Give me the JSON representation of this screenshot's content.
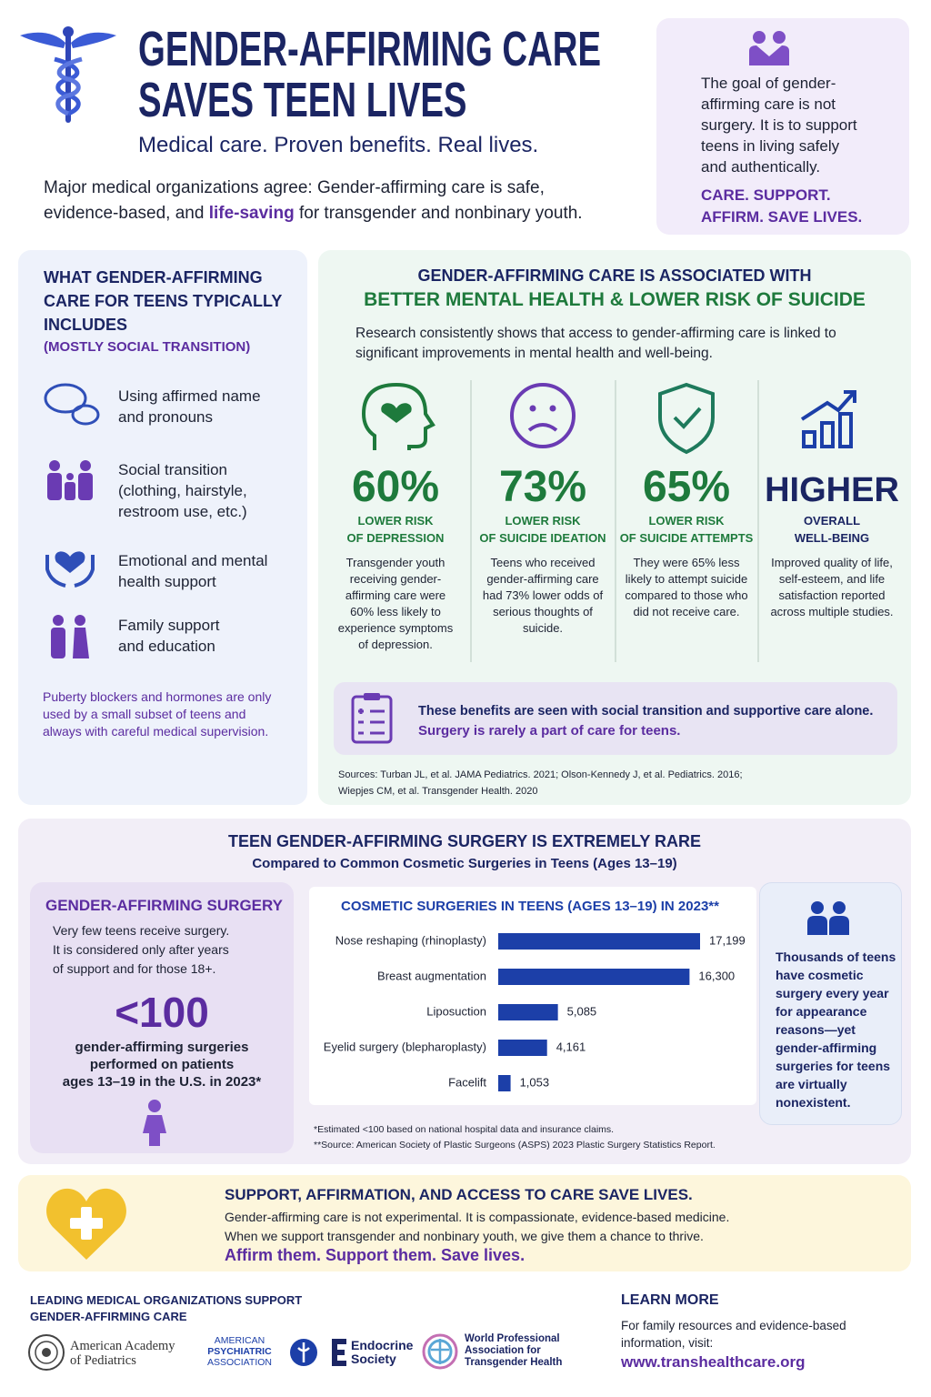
{
  "header": {
    "title_line1": "GENDER-AFFIRMING CARE",
    "title_line2": "SAVES TEEN LIVES",
    "tagline": "Medical care. Proven benefits. Real lives.",
    "intro": [
      "Major medical organizations agree: Gender-affirming care is safe, evidence-based, and",
      "life-saving",
      "for transgender and nonbinary youth."
    ]
  },
  "goal_box": {
    "text": "The goal of gender-affirming care is not surgery. It is to support teens in living safely and authentically.",
    "slogan_line1": "CARE. SUPPORT.",
    "slogan_line2": "AFFIRM. SAVE LIVES."
  },
  "includes": {
    "title": "WHAT GENDER-AFFIRMING CARE FOR TEENS TYPICALLY INCLUDES",
    "subtitle": "(MOSTLY SOCIAL TRANSITION)",
    "items": [
      [
        "Using affirmed name",
        "and pronouns"
      ],
      [
        "Social transition",
        "(clothing, hairstyle,",
        "restroom use, etc.)"
      ],
      [
        "Emotional and mental",
        "health support"
      ],
      [
        "Family support",
        "and education"
      ]
    ],
    "note": "Puberty blockers and hormones are only used by a small subset of teens and always with careful medical supervision."
  },
  "outcomes": {
    "title_line1": "GENDER-AFFIRMING CARE IS ASSOCIATED WITH",
    "title_line2": "BETTER MENTAL HEALTH & LOWER RISK OF SUICIDE",
    "intro": "Research consistently shows that access to gender-affirming care is linked to significant improvements in mental health and well-being.",
    "stats": [
      {
        "value": "60%",
        "label": [
          "LOWER RISK",
          "OF DEPRESSION"
        ],
        "text": "Transgender youth receiving gender-affirming care were 60% less likely to experience symptoms of depression."
      },
      {
        "value": "73%",
        "label": [
          "LOWER RISK",
          "OF SUICIDE IDEATION"
        ],
        "text": "Teens who received gender-affirming care had 73% lower odds of serious thoughts of suicide."
      },
      {
        "value": "65%",
        "label": [
          "LOWER RISK",
          "OF SUICIDE ATTEMPTS"
        ],
        "text": "They were 65% less likely to attempt suicide compared to those who did not receive care."
      },
      {
        "value": "HIGHER",
        "label": [
          "OVERALL",
          "WELL-BEING"
        ],
        "text": "Improved quality of life, self-esteem, and life satisfaction reported across multiple studies."
      }
    ],
    "callout_line1": "These benefits are seen with social transition and supportive care alone.",
    "callout_line2": "Surgery is rarely a part of care for teens.",
    "sources": [
      "Sources: Turban JL, et al. JAMA Pediatrics. 2021; Olson-Kennedy J, et al. Pediatrics. 2016;",
      "Wiepjes CM, et al. Transgender Health. 2020"
    ]
  },
  "rare": {
    "title": "TEEN GENDER-AFFIRMING SURGERY IS EXTREMELY RARE",
    "subtitle": "Compared to Common Cosmetic Surgeries in Teens (Ages 13–19)",
    "left_title": "GENDER-AFFIRMING SURGERY",
    "left_text": [
      "Very few teens receive surgery.",
      "It is considered only after years",
      "of support and for those 18+."
    ],
    "left_value": "<100",
    "left_caption": [
      "gender-affirming surgeries",
      "performed on patients",
      "ages 13–19 in the U.S. in 2023*"
    ],
    "footnotes": [
      "*Estimated <100 based on national hospital data and insurance claims.",
      "**Source: American Society of Plastic Surgeons (ASPS) 2023 Plastic Surgery Statistics Report."
    ],
    "right_note": "Thousands of teens have cosmetic surgery every year for appearance reasons—yet gender-affirming surgeries for teens are virtually nonexistent."
  },
  "chart_data": {
    "type": "hbar",
    "title": "COSMETIC SURGERIES IN TEENS (AGES 13–19) IN 2023**",
    "categories": [
      "Nose reshaping (rhinoplasty)",
      "Breast augmentation",
      "Liposuction",
      "Eyelid surgery (blepharoplasty)",
      "Facelift"
    ],
    "values": [
      17199,
      16300,
      5085,
      4161,
      1053
    ],
    "value_labels": [
      "17,199",
      "16,300",
      "5,085",
      "4,161",
      "1,053"
    ],
    "color": "#1c3fa8"
  },
  "banner": {
    "title": "SUPPORT, AFFIRMATION, AND ACCESS TO CARE SAVE LIVES.",
    "lines": [
      "Gender-affirming care is not experimental. It is compassionate, evidence-based medicine.",
      "When we support transgender and nonbinary youth, we give them a chance to thrive."
    ],
    "slogan": "Affirm them. Support them. Save lives."
  },
  "footer": {
    "orgs_title": [
      "LEADING MEDICAL ORGANIZATIONS SUPPORT",
      "GENDER-AFFIRMING CARE"
    ],
    "orgs": [
      [
        "American Academy",
        "of Pediatrics"
      ],
      [
        "AMERICAN",
        "PSYCHIATRIC",
        "ASSOCIATION"
      ],
      [
        "Endocrine",
        "Society"
      ],
      [
        "World Professional",
        "Association for",
        "Transgender Health"
      ]
    ],
    "learn_more_title": "LEARN MORE",
    "learn_more_text": [
      "For family resources and evidence-based",
      "information, visit:"
    ],
    "url": "www.transhealthcare.org"
  }
}
